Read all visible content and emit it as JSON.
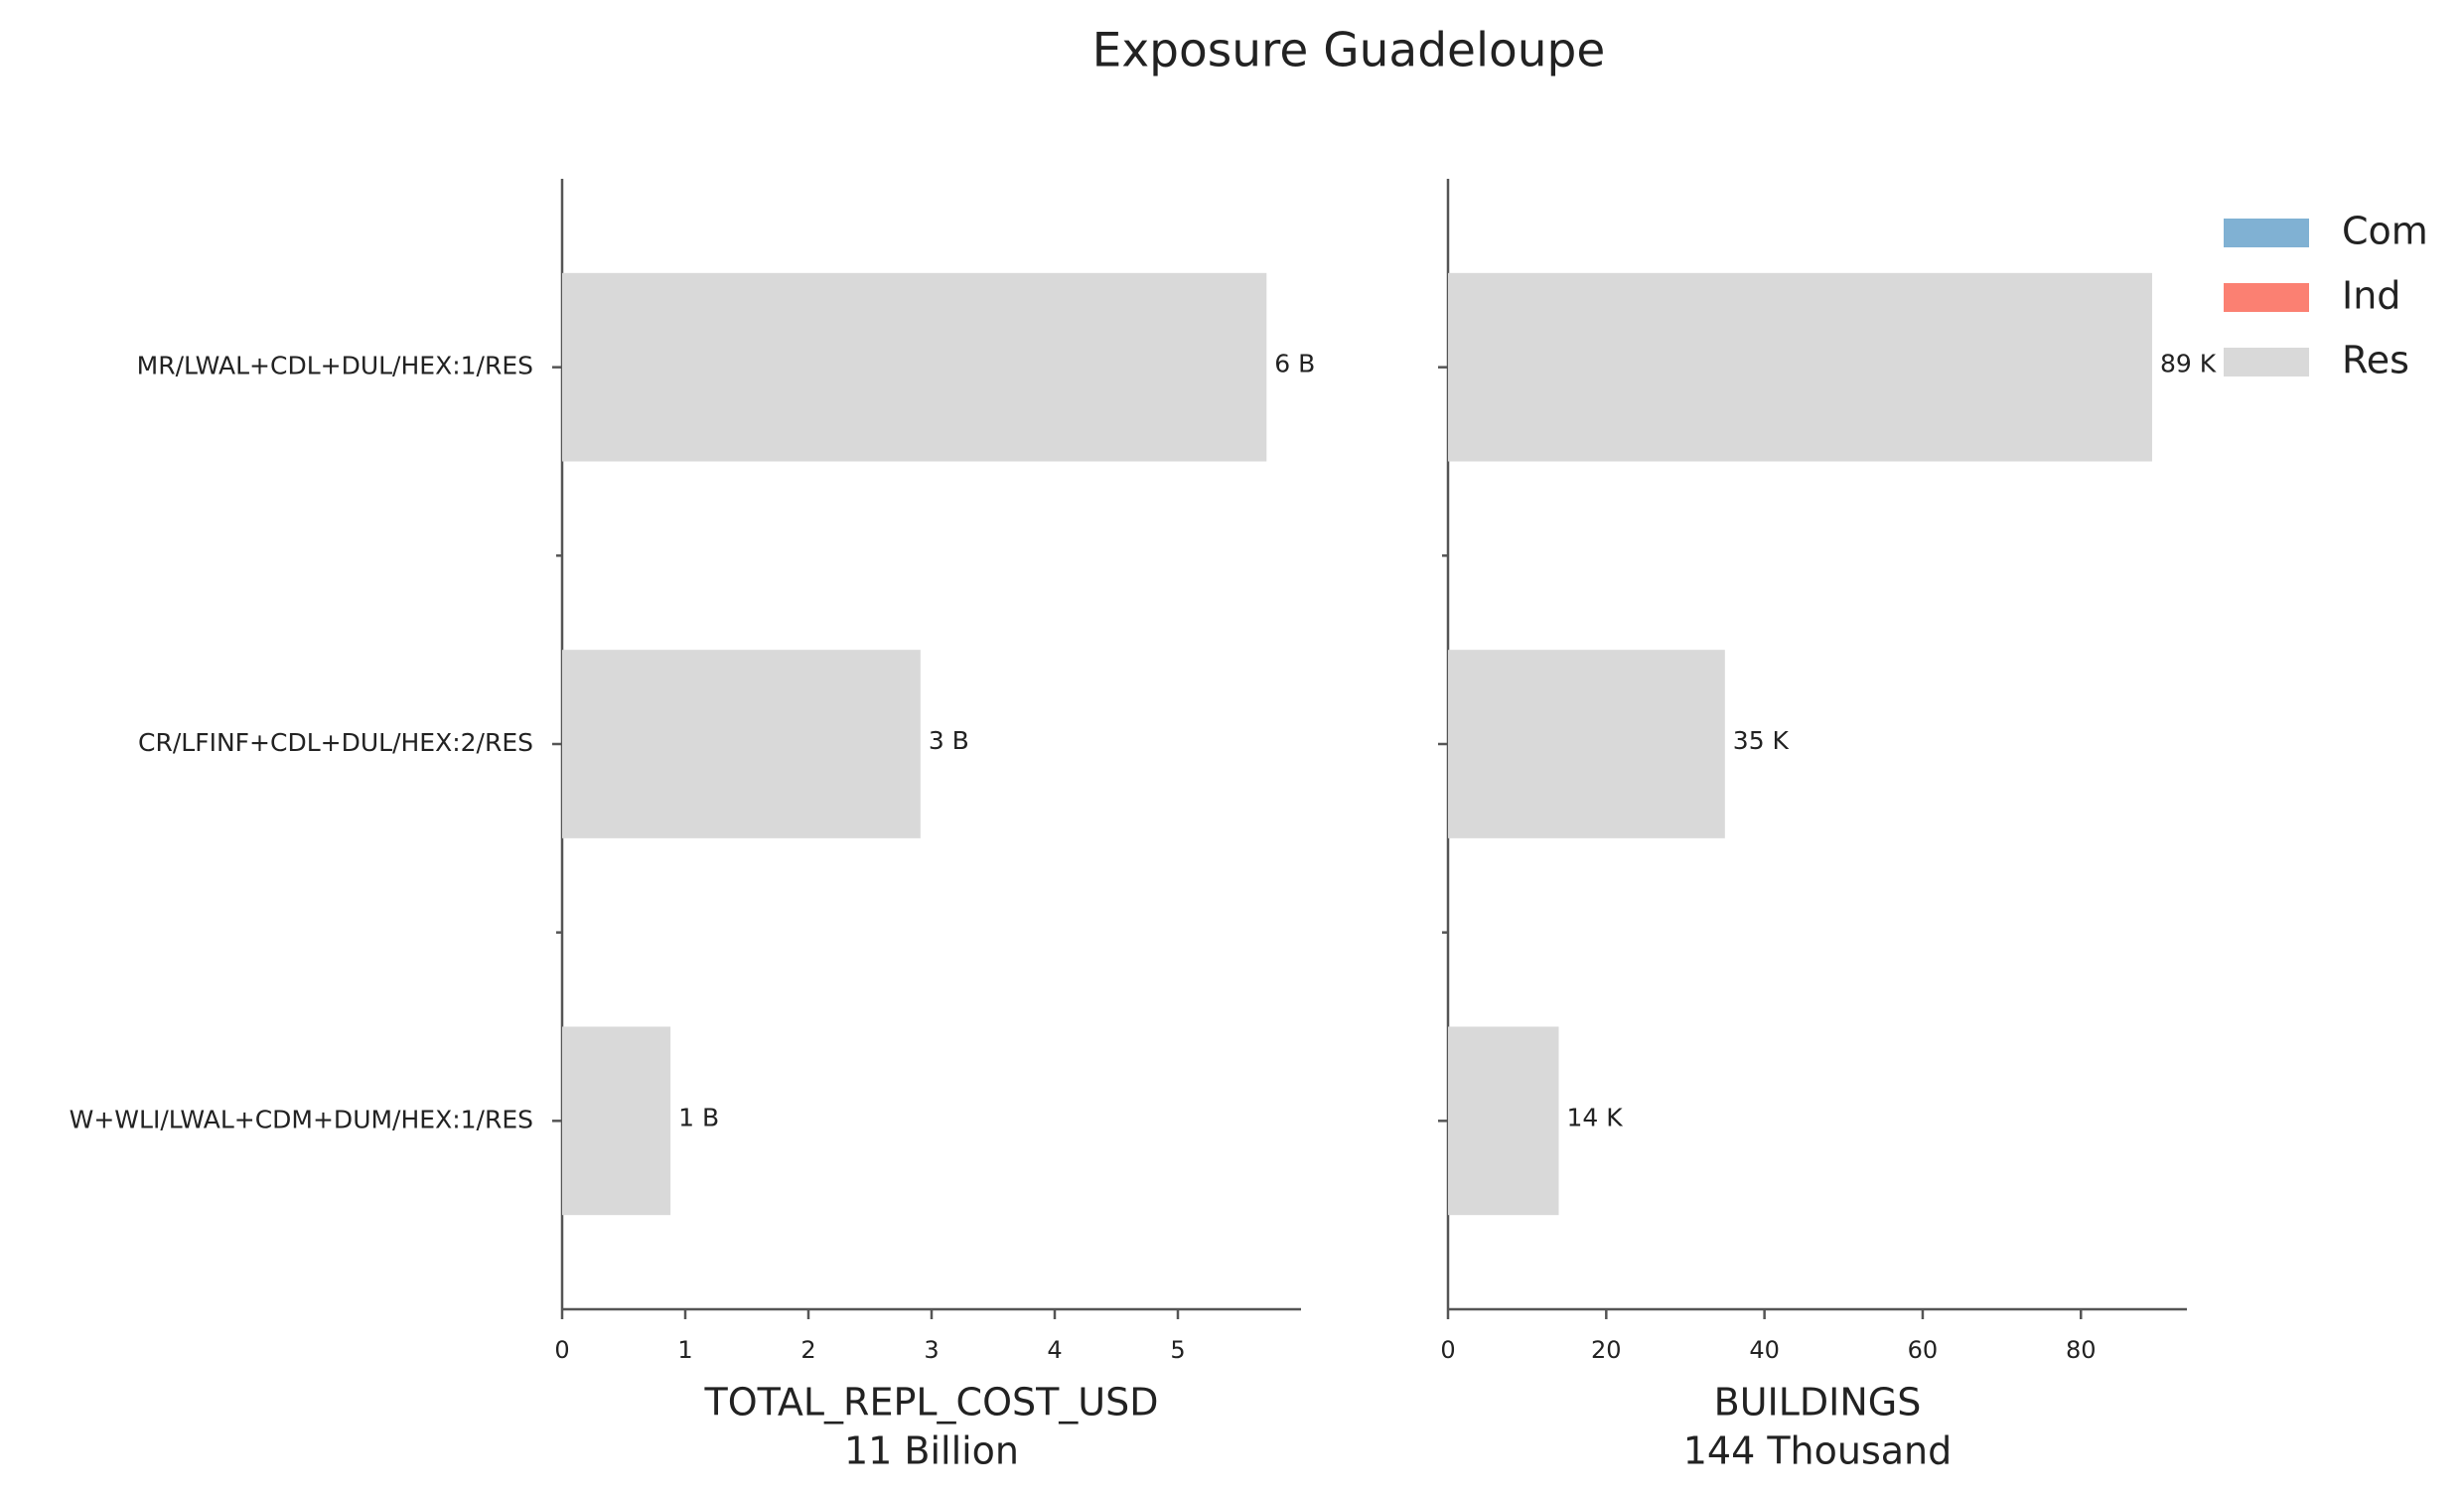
{
  "title": "Exposure Guadeloupe",
  "chart_data": [
    {
      "type": "bar",
      "orientation": "horizontal",
      "categories": [
        "MR/LWAL+CDL+DUL/HEX:1/RES",
        "CR/LFINF+CDL+DUL/HEX:2/RES",
        "W+WLI/LWAL+CDM+DUM/HEX:1/RES"
      ],
      "series": [
        {
          "name": "Com",
          "color": "#80b1d3",
          "values": [
            0,
            0,
            0
          ]
        },
        {
          "name": "Ind",
          "color": "#fb8072",
          "values": [
            0,
            0,
            0
          ]
        },
        {
          "name": "Res",
          "color": "#d9d9d9",
          "values": [
            5.72,
            2.91,
            0.88
          ],
          "value_labels": [
            "6 B",
            "3 B",
            "1 B"
          ]
        }
      ],
      "xlim": [
        0,
        6.0
      ],
      "xticks": [
        0,
        1,
        2,
        3,
        4,
        5
      ],
      "xlabel": "TOTAL_REPL_COST_USD",
      "xlabel_note": "11 Billion"
    },
    {
      "type": "bar",
      "orientation": "horizontal",
      "categories": [
        null,
        null,
        null
      ],
      "series": [
        {
          "name": "Com",
          "color": "#80b1d3",
          "values": [
            0,
            0,
            0
          ]
        },
        {
          "name": "Ind",
          "color": "#fb8072",
          "values": [
            0,
            0,
            0
          ]
        },
        {
          "name": "Res",
          "color": "#d9d9d9",
          "values": [
            89,
            35,
            14
          ],
          "value_labels": [
            "89 K",
            "35 K",
            "14 K"
          ]
        }
      ],
      "xlim": [
        0,
        93.4
      ],
      "xticks": [
        0,
        20,
        40,
        60,
        80
      ],
      "xlabel": "BUILDINGS",
      "xlabel_note": "144 Thousand",
      "legend": "upper right"
    }
  ]
}
